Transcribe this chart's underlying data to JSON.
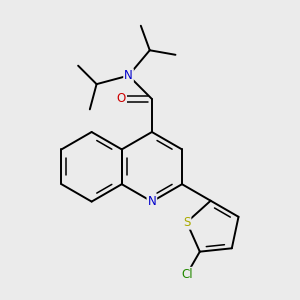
{
  "background_color": "#ebebeb",
  "atom_colors": {
    "C": "#000000",
    "N": "#0000cc",
    "O": "#cc0000",
    "S": "#aaaa00",
    "Cl": "#228800"
  },
  "figsize": [
    3.0,
    3.0
  ],
  "dpi": 100,
  "bond_lw": 1.4,
  "inner_lw": 1.1,
  "font_size": 8.5
}
